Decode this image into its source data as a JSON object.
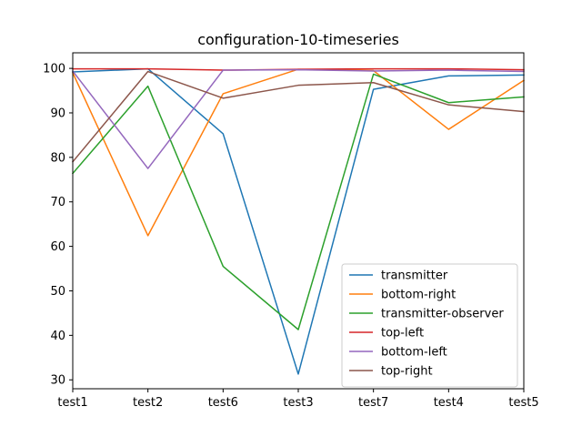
{
  "chart_data": {
    "type": "line",
    "title": "configuration-10-timeseries",
    "xlabel": "",
    "ylabel": "",
    "categories": [
      "test1",
      "test2",
      "test6",
      "test3",
      "test7",
      "test4",
      "test5"
    ],
    "ylim": [
      28,
      103.5
    ],
    "yticks": [
      30,
      40,
      50,
      60,
      70,
      80,
      90,
      100
    ],
    "grid": false,
    "legend_position": "lower-right",
    "series": [
      {
        "name": "transmitter",
        "color": "#1f77b4",
        "values": [
          99.2,
          99.9,
          85.3,
          31.3,
          95.3,
          98.3,
          98.5
        ]
      },
      {
        "name": "bottom-right",
        "color": "#ff7f0e",
        "values": [
          99.0,
          62.4,
          94.3,
          99.8,
          99.5,
          86.3,
          97.3
        ]
      },
      {
        "name": "transmitter-observer",
        "color": "#2ca02c",
        "values": [
          76.4,
          96.0,
          55.5,
          41.3,
          98.7,
          92.3,
          93.6
        ]
      },
      {
        "name": "top-left",
        "color": "#d62728",
        "values": [
          99.9,
          99.9,
          99.6,
          99.8,
          99.9,
          99.9,
          99.7
        ]
      },
      {
        "name": "bottom-left",
        "color": "#9467bd",
        "values": [
          99.4,
          77.5,
          99.6,
          99.7,
          99.4,
          99.6,
          99.3
        ]
      },
      {
        "name": "top-right",
        "color": "#8c564b",
        "values": [
          79.0,
          99.3,
          93.3,
          96.2,
          96.8,
          91.8,
          90.3
        ]
      }
    ]
  }
}
